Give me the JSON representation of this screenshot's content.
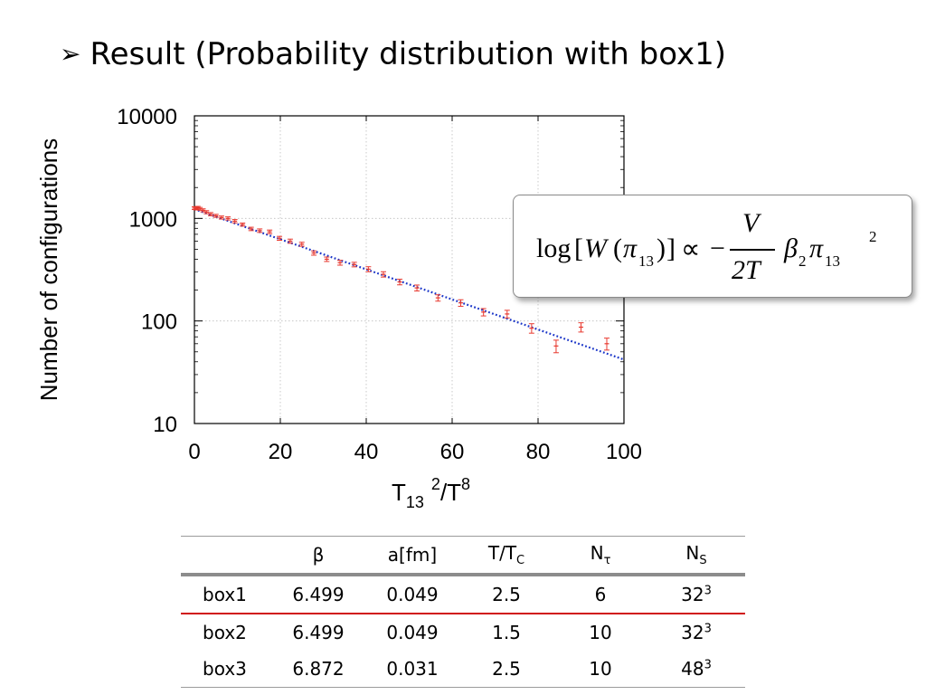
{
  "slide": {
    "title_marker": "➢",
    "title": "Result (Probability distribution with box1)"
  },
  "chart_data": {
    "type": "scatter",
    "xlabel": {
      "main": "T",
      "sub": "13",
      "sup1": "2",
      "rest": "/T",
      "sup2": "8"
    },
    "ylabel": "Number of configurations",
    "xlim": [
      0,
      100
    ],
    "ylim": [
      10,
      10000
    ],
    "y_scale": "log",
    "x_ticks": [
      0,
      20,
      40,
      60,
      80,
      100
    ],
    "y_ticks": [
      10,
      100,
      1000,
      10000
    ],
    "y_tick_labels": [
      "10",
      "100",
      "1000",
      "10000"
    ],
    "grid": "on (dotted, at major ticks)",
    "series": [
      {
        "marker": "cross with error bars",
        "color": "#e8392f",
        "points": [
          {
            "x": 0.0,
            "y": 1260,
            "err": 40
          },
          {
            "x": 0.4,
            "y": 1250,
            "err": 40
          },
          {
            "x": 0.8,
            "y": 1270,
            "err": 40
          },
          {
            "x": 1.3,
            "y": 1240,
            "err": 40
          },
          {
            "x": 2.0,
            "y": 1200,
            "err": 40
          },
          {
            "x": 2.8,
            "y": 1150,
            "err": 40
          },
          {
            "x": 3.8,
            "y": 1100,
            "err": 40
          },
          {
            "x": 5.0,
            "y": 1060,
            "err": 35
          },
          {
            "x": 6.3,
            "y": 1020,
            "err": 35
          },
          {
            "x": 7.8,
            "y": 1000,
            "err": 35
          },
          {
            "x": 9.4,
            "y": 940,
            "err": 35
          },
          {
            "x": 11.2,
            "y": 870,
            "err": 30
          },
          {
            "x": 13.2,
            "y": 790,
            "err": 30
          },
          {
            "x": 15.2,
            "y": 760,
            "err": 30
          },
          {
            "x": 17.5,
            "y": 740,
            "err": 30
          },
          {
            "x": 19.8,
            "y": 640,
            "err": 28
          },
          {
            "x": 22.3,
            "y": 600,
            "err": 28
          },
          {
            "x": 25.0,
            "y": 560,
            "err": 25
          },
          {
            "x": 27.8,
            "y": 460,
            "err": 22
          },
          {
            "x": 30.8,
            "y": 400,
            "err": 20
          },
          {
            "x": 33.9,
            "y": 370,
            "err": 20
          },
          {
            "x": 37.2,
            "y": 355,
            "err": 18
          },
          {
            "x": 40.5,
            "y": 320,
            "err": 18
          },
          {
            "x": 44.0,
            "y": 285,
            "err": 17
          },
          {
            "x": 47.8,
            "y": 240,
            "err": 15
          },
          {
            "x": 51.8,
            "y": 210,
            "err": 14
          },
          {
            "x": 56.7,
            "y": 168,
            "err": 12
          },
          {
            "x": 62.0,
            "y": 150,
            "err": 11
          },
          {
            "x": 67.3,
            "y": 122,
            "err": 10
          },
          {
            "x": 72.8,
            "y": 117,
            "err": 10
          },
          {
            "x": 78.5,
            "y": 85,
            "err": 9
          },
          {
            "x": 84.2,
            "y": 57,
            "err": 8
          },
          {
            "x": 90.0,
            "y": 87,
            "err": 9
          },
          {
            "x": 96.0,
            "y": 60,
            "err": 8
          }
        ]
      },
      {
        "marker": "dotted line",
        "color": "#1a35c8",
        "points": [
          {
            "x": 0,
            "y": 1230
          },
          {
            "x": 100,
            "y": 42
          }
        ]
      }
    ]
  },
  "formula": {
    "log": "log",
    "bracket_open": "[",
    "W": "W",
    "paren_open": "(",
    "pi": "π",
    "sub13": "13",
    "paren_close": ")",
    "bracket_close": "]",
    "prop": "∝",
    "minus": "−",
    "numerator": "V",
    "denominator": "2T",
    "beta": "β",
    "sub2": "2",
    "pi2": "π",
    "sub13b": "13",
    "sup2": "2"
  },
  "table": {
    "headers": [
      {
        "main": "",
        "sub": ""
      },
      {
        "main": "β",
        "sub": ""
      },
      {
        "main": "a[fm]",
        "sub": ""
      },
      {
        "main": "T/T",
        "sub": "C"
      },
      {
        "main": "N",
        "sub": "τ"
      },
      {
        "main": "N",
        "sub": "S"
      }
    ],
    "rows": [
      {
        "label": "box1",
        "beta": "6.499",
        "a": "0.049",
        "t": "2.5",
        "nt": "6",
        "ns_base": "32",
        "ns_exp": "3"
      },
      {
        "label": "box2",
        "beta": "6.499",
        "a": "0.049",
        "t": "1.5",
        "nt": "10",
        "ns_base": "32",
        "ns_exp": "3"
      },
      {
        "label": "box3",
        "beta": "6.872",
        "a": "0.031",
        "t": "2.5",
        "nt": "10",
        "ns_base": "48",
        "ns_exp": "3"
      }
    ]
  }
}
